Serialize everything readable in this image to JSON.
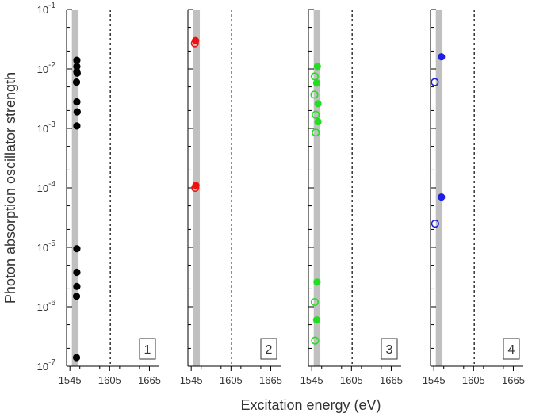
{
  "chart_data": {
    "type": "scatter",
    "layout": "4 panels sharing log y-axis",
    "ylabel": "Photon absorption oscillator strength",
    "xlabel": "Excitation energy (eV)",
    "yscale": "log",
    "ylim": [
      1e-07,
      0.1
    ],
    "y_tick_labels": [
      {
        "base": "10",
        "exp": "-1"
      },
      {
        "base": "10",
        "exp": "-2"
      },
      {
        "base": "10",
        "exp": "-3"
      },
      {
        "base": "10",
        "exp": "-4"
      },
      {
        "base": "10",
        "exp": "-5"
      },
      {
        "base": "10",
        "exp": "-6"
      },
      {
        "base": "10",
        "exp": "-7"
      }
    ],
    "x_tick_labels": [
      "1545",
      "1605",
      "1665"
    ],
    "xlim": [
      1540,
      1680
    ],
    "shaded_band": [
      1548,
      1558
    ],
    "band_color": "#c0c0c0",
    "dashed_line_x": 1606,
    "panels": [
      {
        "label": "1",
        "color": "#000000",
        "filled": [
          [
            1555.5,
            0.014
          ],
          [
            1555.5,
            0.011
          ],
          [
            1555.5,
            0.009
          ],
          [
            1556,
            0.0085
          ],
          [
            1555,
            0.006
          ],
          [
            1555.5,
            0.0028
          ],
          [
            1556,
            0.0019
          ],
          [
            1555.5,
            0.0011
          ],
          [
            1555.5,
            9.5e-06
          ],
          [
            1555.5,
            3.8e-06
          ],
          [
            1555.5,
            2.2e-06
          ],
          [
            1555,
            1.5e-06
          ],
          [
            1555,
            1.4e-07
          ]
        ],
        "open": []
      },
      {
        "label": "2",
        "color": "#ee1111",
        "filled": [
          [
            1551.5,
            0.03
          ],
          [
            1552,
            0.00011
          ]
        ],
        "open": [
          [
            1550.5,
            0.027
          ],
          [
            1551,
            0.0001
          ]
        ]
      },
      {
        "label": "3",
        "color": "#22dd22",
        "filled": [
          [
            1553.5,
            0.011
          ],
          [
            1552.5,
            0.0058
          ],
          [
            1554.5,
            0.0026
          ],
          [
            1554.5,
            0.0013
          ],
          [
            1553,
            2.6e-06
          ],
          [
            1552.5,
            6e-07
          ]
        ],
        "open": [
          [
            1549.5,
            0.0075
          ],
          [
            1549,
            0.0037
          ],
          [
            1551,
            0.0017
          ],
          [
            1551,
            0.00085
          ],
          [
            1549.5,
            1.2e-06
          ],
          [
            1550,
            2.7e-07
          ]
        ]
      },
      {
        "label": "4",
        "color": "#1f1fdd",
        "filled": [
          [
            1556.5,
            0.016
          ],
          [
            1556.5,
            7e-05
          ]
        ],
        "open": [
          [
            1546.5,
            0.006
          ],
          [
            1547,
            2.5e-05
          ]
        ]
      }
    ]
  }
}
